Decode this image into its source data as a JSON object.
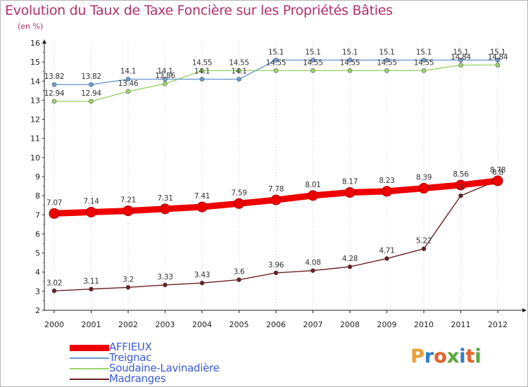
{
  "title": "Evolution du Taux de Taxe Foncière sur les Propriétés Bâties",
  "unit": "(en %)",
  "logo": {
    "letters": [
      {
        "ch": "P",
        "color": "#e8a23a"
      },
      {
        "ch": "r",
        "color": "#2f7fc9"
      },
      {
        "ch": "o",
        "color": "#e5632c"
      },
      {
        "ch": "x",
        "color": "#5aa83e"
      },
      {
        "ch": "i",
        "color": "#2f7fc9"
      },
      {
        "ch": "t",
        "color": "#e5632c"
      },
      {
        "ch": "i",
        "color": "#5aa83e"
      }
    ]
  },
  "chart_data": {
    "type": "line",
    "title": "Evolution du Taux de Taxe Foncière sur les Propriétés Bâties",
    "ylabel": "(en %)",
    "xlabel": "",
    "categories": [
      "2000",
      "2001",
      "2002",
      "2003",
      "2004",
      "2005",
      "2006",
      "2007",
      "2008",
      "2009",
      "2010",
      "2011",
      "2012"
    ],
    "ylim": [
      2,
      16
    ],
    "yticks": [
      2,
      3,
      4,
      5,
      6,
      7,
      8,
      9,
      10,
      11,
      12,
      13,
      14,
      15,
      16
    ],
    "grid": "vertical dotted",
    "legend_position": "bottom-left",
    "series": [
      {
        "name": "AFFIEUX",
        "color": "#ee0000",
        "values": [
          7.07,
          7.14,
          7.21,
          7.31,
          7.41,
          7.59,
          7.78,
          8.01,
          8.17,
          8.23,
          8.39,
          8.56,
          8.78
        ],
        "labels": [
          "7.07",
          "7.14",
          "7.21",
          "7.31",
          "7.41",
          "7.59",
          "7.78",
          "8.01",
          "8.17",
          "8.23",
          "8.39",
          "8.56",
          "8.78"
        ]
      },
      {
        "name": "Treignac",
        "color": "#6e9bd0",
        "values": [
          13.82,
          13.82,
          14.1,
          14.1,
          14.1,
          14.1,
          15.1,
          15.1,
          15.1,
          15.1,
          15.1,
          15.1,
          15.1
        ],
        "labels": [
          "13.82",
          "13.82",
          "14.1",
          "14.1",
          "14.1",
          "14.1",
          "15.1",
          "15.1",
          "15.1",
          "15.1",
          "15.1",
          "15.1",
          "15.1"
        ]
      },
      {
        "name": "Soudaine-Lavinadière",
        "color": "#9ad76a",
        "values": [
          12.94,
          12.94,
          13.46,
          13.86,
          14.55,
          14.55,
          14.55,
          14.55,
          14.55,
          14.55,
          14.55,
          14.84,
          14.84
        ],
        "labels": [
          "12.94",
          "12.94",
          "13.46",
          "13.86",
          "14.55",
          "14.55",
          "14.55",
          "14.55",
          "14.55",
          "14.55",
          "14.55",
          "14.84",
          "14.84"
        ]
      },
      {
        "name": "Madranges",
        "color": "#6b1f24",
        "values": [
          3.02,
          3.11,
          3.2,
          3.33,
          3.43,
          3.6,
          3.96,
          4.08,
          4.28,
          4.71,
          5.22,
          8.0,
          8.8
        ],
        "labels": [
          "3.02",
          "3.11",
          "3.2",
          "3.33",
          "3.43",
          "3.6",
          "3.96",
          "4.08",
          "4.28",
          "4.71",
          "5.22",
          "8",
          "8.8"
        ]
      }
    ]
  }
}
